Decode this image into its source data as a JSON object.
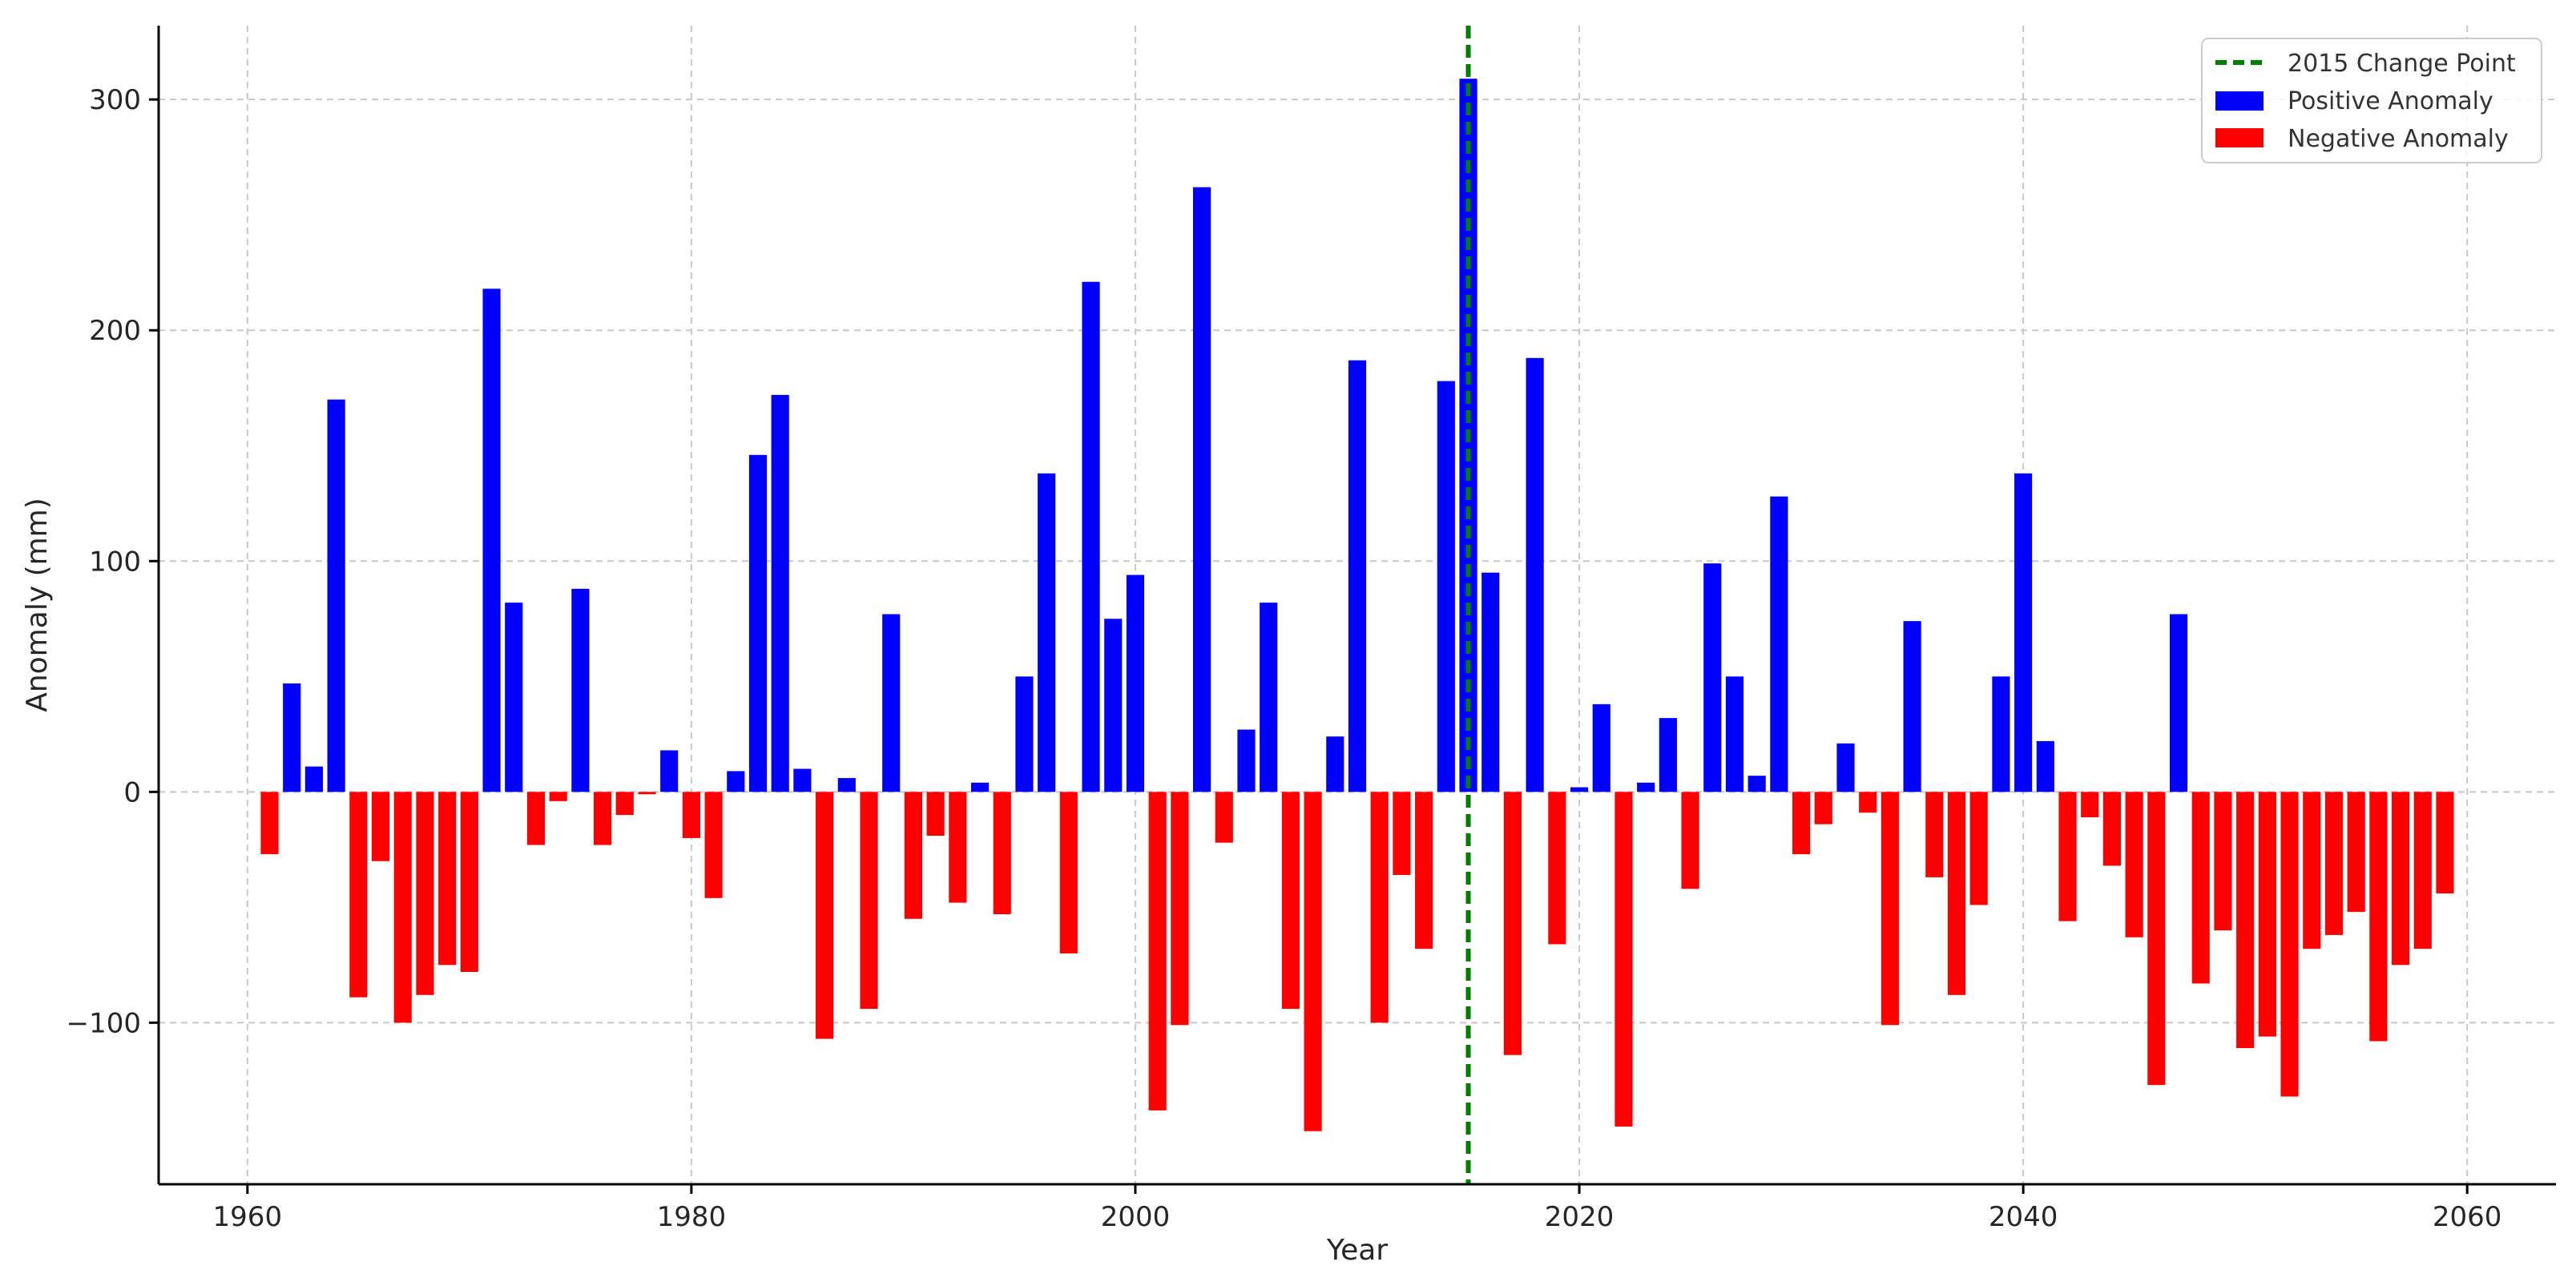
{
  "chart_data": {
    "type": "bar",
    "title": "",
    "xlabel": "Year",
    "ylabel": "Anomaly (mm)",
    "xlim": [
      1956,
      2064
    ],
    "ylim": [
      -170,
      332
    ],
    "xticks": [
      1960,
      1980,
      2000,
      2020,
      2040,
      2060
    ],
    "yticks": [
      -100,
      0,
      100,
      200,
      300
    ],
    "ytick_labels": [
      "−100",
      "0",
      "100",
      "200",
      "300"
    ],
    "grid": true,
    "legend_position": "top-right",
    "change_point": {
      "year": 2015,
      "label": "2015 Change Point",
      "color": "#008000"
    },
    "series_labels": {
      "positive": "Positive Anomaly",
      "negative": "Negative Anomaly"
    },
    "colors": {
      "positive": "#0000ff",
      "negative": "#ff0000"
    },
    "years": [
      1961,
      1962,
      1963,
      1964,
      1965,
      1966,
      1967,
      1968,
      1969,
      1970,
      1971,
      1972,
      1973,
      1974,
      1975,
      1976,
      1977,
      1978,
      1979,
      1980,
      1981,
      1982,
      1983,
      1984,
      1985,
      1986,
      1987,
      1988,
      1989,
      1990,
      1991,
      1992,
      1993,
      1994,
      1995,
      1996,
      1997,
      1998,
      1999,
      2000,
      2001,
      2002,
      2003,
      2004,
      2005,
      2006,
      2007,
      2008,
      2009,
      2010,
      2011,
      2012,
      2013,
      2014,
      2015,
      2016,
      2017,
      2018,
      2019,
      2020,
      2021,
      2022,
      2023,
      2024,
      2025,
      2026,
      2027,
      2028,
      2029,
      2030,
      2031,
      2032,
      2033,
      2034,
      2035,
      2036,
      2037,
      2038,
      2039,
      2040,
      2041,
      2042,
      2043,
      2044,
      2045,
      2046,
      2047,
      2048,
      2049,
      2050,
      2051,
      2052,
      2053,
      2054,
      2055,
      2056,
      2057,
      2058,
      2059
    ],
    "values": [
      -27,
      47,
      11,
      170,
      -89,
      -30,
      -100,
      -88,
      -75,
      -78,
      218,
      82,
      -23,
      -4,
      88,
      -23,
      -10,
      -1,
      18,
      -20,
      -46,
      9,
      146,
      172,
      10,
      -107,
      6,
      -94,
      77,
      -55,
      -19,
      -48,
      4,
      -53,
      50,
      138,
      -70,
      221,
      75,
      94,
      -138,
      -101,
      262,
      -22,
      27,
      82,
      -94,
      -147,
      24,
      187,
      -100,
      -36,
      -68,
      178,
      309,
      95,
      -114,
      188,
      -66,
      2,
      38,
      -145,
      4,
      32,
      -42,
      99,
      50,
      7,
      128,
      -27,
      -14,
      21,
      -9,
      -101,
      74,
      -37,
      -88,
      -49,
      50,
      138,
      22,
      -56,
      -11,
      -32,
      -63,
      -127,
      77,
      -83,
      -60,
      -111,
      -106,
      -132,
      -68,
      -62,
      -52,
      -108,
      -75,
      -68,
      -44
    ]
  }
}
